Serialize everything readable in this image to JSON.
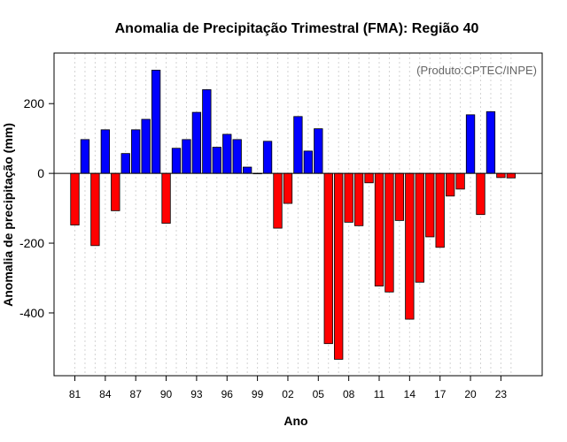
{
  "chart_data": {
    "type": "bar",
    "title": "Anomalia de Precipitação Trimestral (FMA): Região 40",
    "xlabel": "Ano",
    "ylabel": "Anomalia de precipitação (mm)",
    "note": "(Produto:CPTEC/INPE)",
    "years": [
      1981,
      1982,
      1983,
      1984,
      1985,
      1986,
      1987,
      1988,
      1989,
      1990,
      1991,
      1992,
      1993,
      1994,
      1995,
      1996,
      1997,
      1998,
      1999,
      2000,
      2001,
      2002,
      2003,
      2004,
      2005,
      2006,
      2007,
      2008,
      2009,
      2010,
      2011,
      2012,
      2013,
      2014,
      2015,
      2016,
      2017,
      2018,
      2019,
      2020,
      2021,
      2022,
      2023,
      2024
    ],
    "values": [
      -148,
      97,
      -207,
      125,
      -107,
      57,
      125,
      155,
      296,
      -143,
      72,
      97,
      175,
      240,
      75,
      112,
      97,
      18,
      0,
      92,
      -157,
      -86,
      163,
      64,
      128,
      -488,
      -533,
      -140,
      -150,
      -27,
      -323,
      -340,
      -135,
      -418,
      -312,
      -182,
      -212,
      -65,
      -45,
      168,
      -118,
      177,
      -12,
      -13
    ],
    "ylim": [
      -580,
      345
    ],
    "yticks": [
      -400,
      -200,
      0,
      200
    ],
    "xtick_labels": [
      "81",
      "84",
      "87",
      "90",
      "93",
      "96",
      "99",
      "02",
      "05",
      "08",
      "11",
      "14",
      "17",
      "20",
      "23"
    ],
    "xtick_years": [
      1981,
      1984,
      1987,
      1990,
      1993,
      1996,
      1999,
      2002,
      2005,
      2008,
      2011,
      2014,
      2017,
      2020,
      2023
    ],
    "colors": {
      "positive": "#0000ff",
      "negative": "#ff0000",
      "grid": "#d3d3d3",
      "bar_border": "#000000"
    }
  }
}
